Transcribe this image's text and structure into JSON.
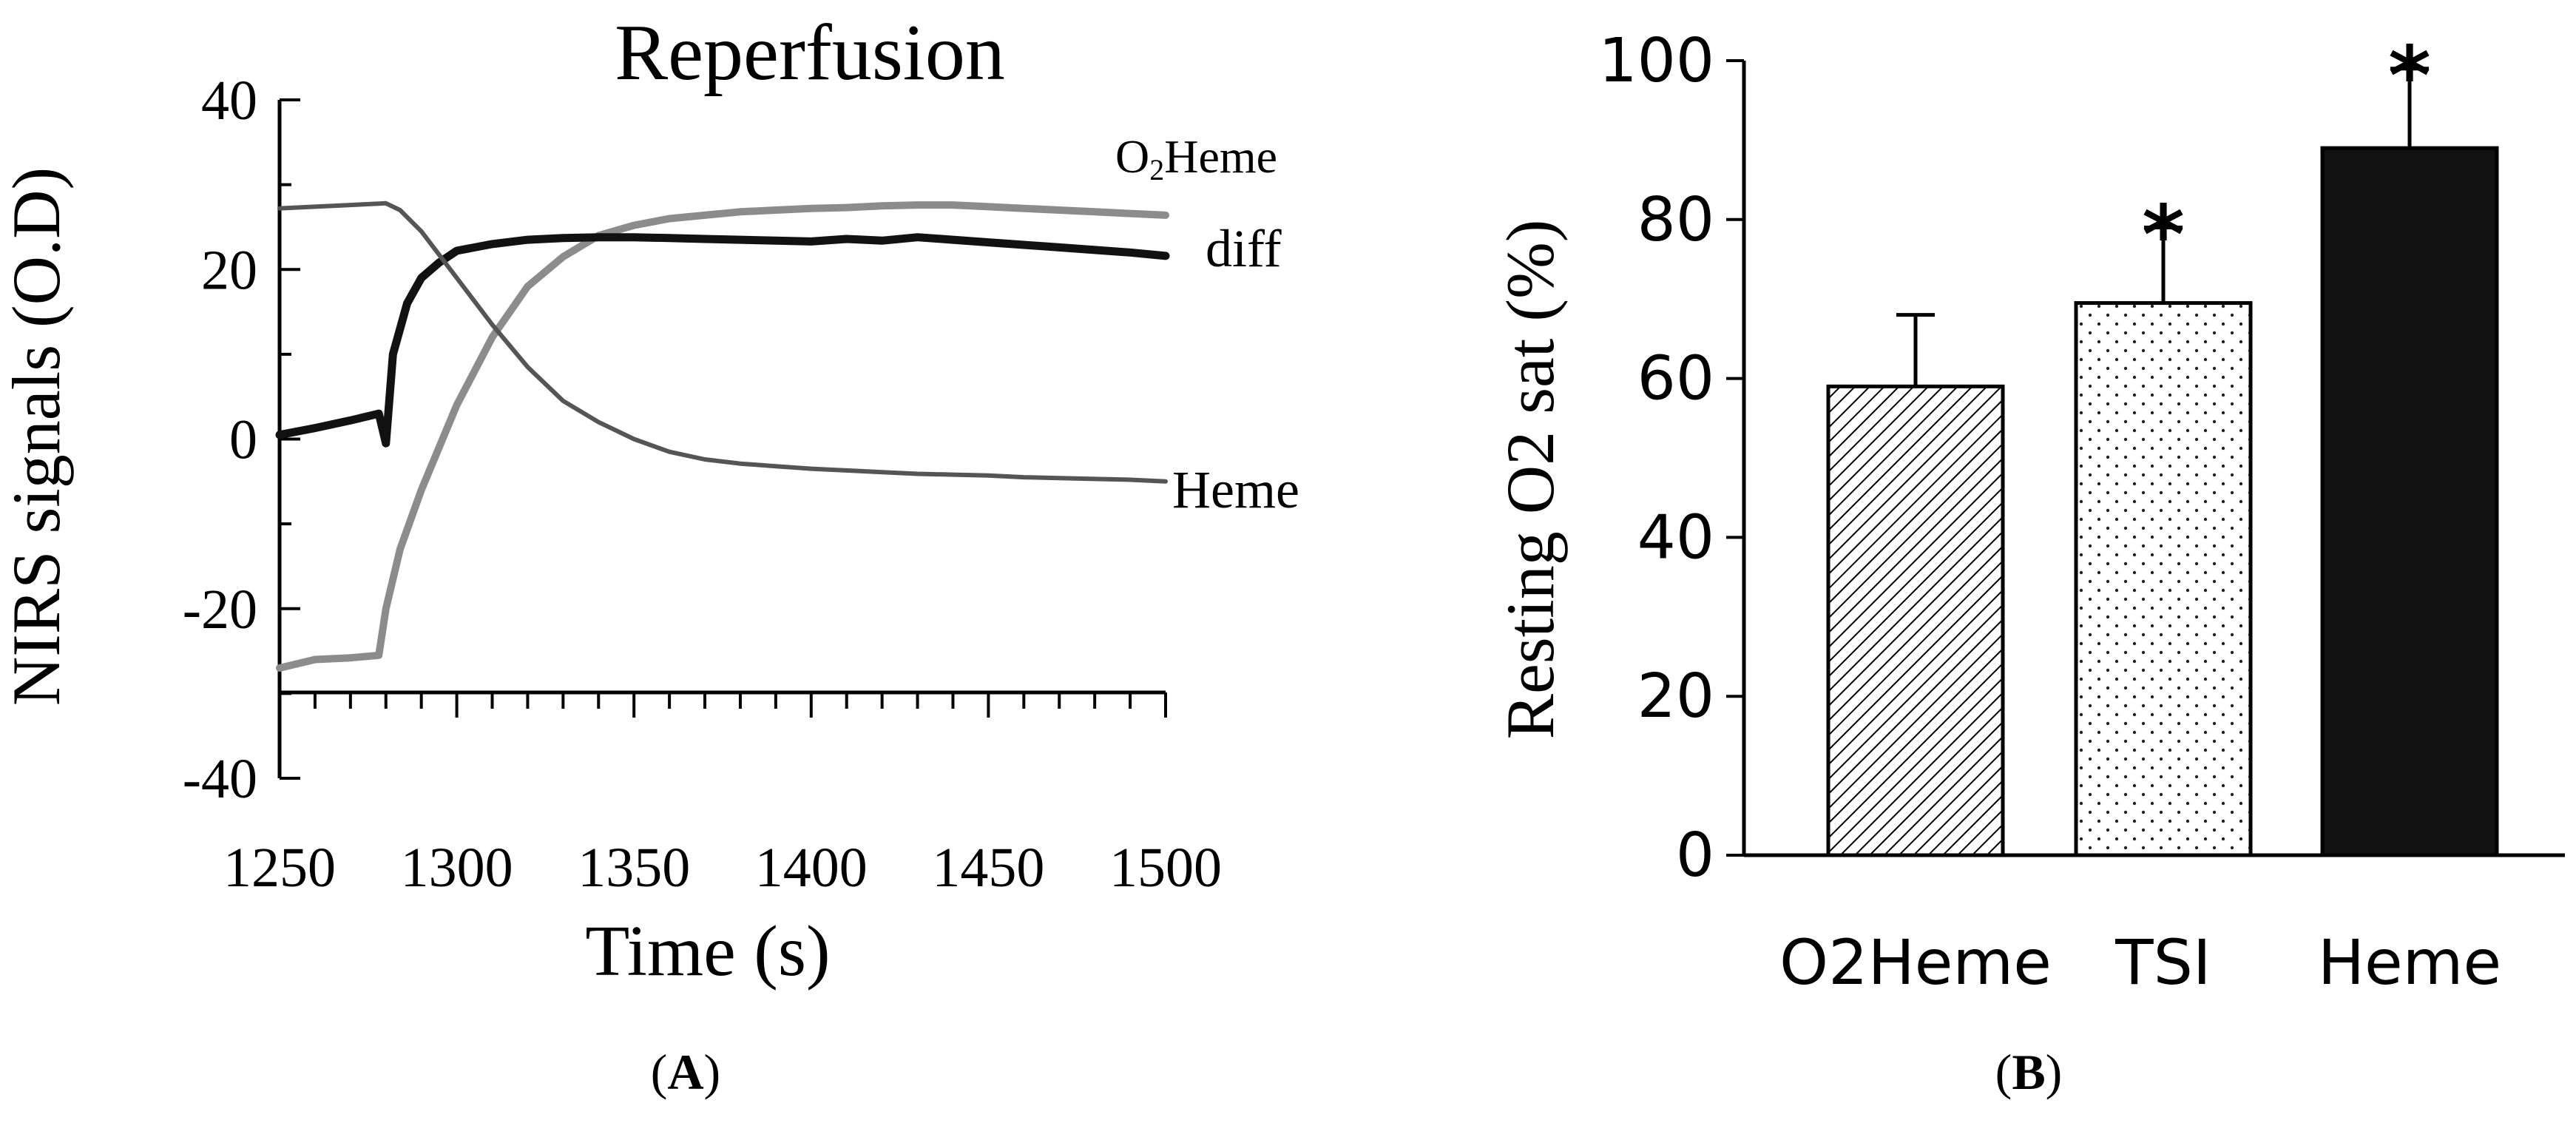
{
  "figure": {
    "panel_a_label": {
      "open": "(",
      "letter": "A",
      "close": ")"
    },
    "panel_b_label": {
      "open": "(",
      "letter": "B",
      "close": ")"
    }
  },
  "chart_data": [
    {
      "type": "line",
      "title": "Reperfusion",
      "xlabel": "Time (s)",
      "ylabel": "NIRS signals (O.D)",
      "xlim": [
        1250,
        1500
      ],
      "ylim": [
        -40,
        40
      ],
      "x_ticks": [
        "1250",
        "1300",
        "1350",
        "1400",
        "1450",
        "1500"
      ],
      "y_ticks": [
        "40",
        "20",
        "0",
        "-20",
        "-40"
      ],
      "grid": false,
      "legend": "inline labels at right end of lines",
      "series_labels": {
        "O2Heme": {
          "main": "O",
          "sub": "2",
          "rest": "Heme"
        },
        "diff": "diff",
        "Heme": "Heme"
      },
      "series": [
        {
          "name": "O2Heme",
          "color": "#8c8c8c",
          "points": [
            [
              1250,
              -27
            ],
            [
              1260,
              -26
            ],
            [
              1270,
              -25.8
            ],
            [
              1278,
              -25.5
            ],
            [
              1280,
              -20
            ],
            [
              1284,
              -13
            ],
            [
              1290,
              -6
            ],
            [
              1300,
              4
            ],
            [
              1310,
              12
            ],
            [
              1320,
              18
            ],
            [
              1330,
              21.5
            ],
            [
              1340,
              24
            ],
            [
              1350,
              25.2
            ],
            [
              1360,
              26
            ],
            [
              1370,
              26.4
            ],
            [
              1380,
              26.8
            ],
            [
              1390,
              27
            ],
            [
              1400,
              27.2
            ],
            [
              1410,
              27.3
            ],
            [
              1420,
              27.5
            ],
            [
              1430,
              27.6
            ],
            [
              1440,
              27.6
            ],
            [
              1450,
              27.4
            ],
            [
              1460,
              27.2
            ],
            [
              1470,
              27
            ],
            [
              1480,
              26.8
            ],
            [
              1490,
              26.6
            ],
            [
              1500,
              26.4
            ]
          ]
        },
        {
          "name": "diff",
          "color": "#111111",
          "points": [
            [
              1250,
              0.5
            ],
            [
              1260,
              1.3
            ],
            [
              1270,
              2.2
            ],
            [
              1278,
              3
            ],
            [
              1280,
              -0.5
            ],
            [
              1282,
              10
            ],
            [
              1286,
              16
            ],
            [
              1290,
              19
            ],
            [
              1295,
              20.8
            ],
            [
              1300,
              22.2
            ],
            [
              1310,
              23
            ],
            [
              1320,
              23.5
            ],
            [
              1330,
              23.7
            ],
            [
              1340,
              23.8
            ],
            [
              1350,
              23.8
            ],
            [
              1360,
              23.7
            ],
            [
              1370,
              23.6
            ],
            [
              1380,
              23.5
            ],
            [
              1390,
              23.4
            ],
            [
              1400,
              23.3
            ],
            [
              1410,
              23.6
            ],
            [
              1420,
              23.4
            ],
            [
              1430,
              23.8
            ],
            [
              1440,
              23.5
            ],
            [
              1450,
              23.2
            ],
            [
              1460,
              22.9
            ],
            [
              1470,
              22.6
            ],
            [
              1480,
              22.3
            ],
            [
              1490,
              22
            ],
            [
              1500,
              21.6
            ]
          ]
        },
        {
          "name": "Heme",
          "color": "#555555",
          "points": [
            [
              1250,
              27.2
            ],
            [
              1260,
              27.4
            ],
            [
              1270,
              27.6
            ],
            [
              1280,
              27.8
            ],
            [
              1284,
              27
            ],
            [
              1290,
              24.5
            ],
            [
              1300,
              19
            ],
            [
              1310,
              13.5
            ],
            [
              1320,
              8.5
            ],
            [
              1330,
              4.5
            ],
            [
              1340,
              2
            ],
            [
              1350,
              0
            ],
            [
              1360,
              -1.5
            ],
            [
              1370,
              -2.4
            ],
            [
              1380,
              -2.9
            ],
            [
              1390,
              -3.2
            ],
            [
              1400,
              -3.5
            ],
            [
              1410,
              -3.7
            ],
            [
              1420,
              -3.9
            ],
            [
              1430,
              -4.1
            ],
            [
              1440,
              -4.2
            ],
            [
              1450,
              -4.3
            ],
            [
              1460,
              -4.5
            ],
            [
              1470,
              -4.6
            ],
            [
              1480,
              -4.7
            ],
            [
              1490,
              -4.8
            ],
            [
              1500,
              -5
            ]
          ]
        }
      ]
    },
    {
      "type": "bar",
      "title": "",
      "xlabel": "",
      "ylabel": "Resting O2 sat (%)",
      "ylim": [
        0,
        100
      ],
      "y_ticks": [
        "0",
        "20",
        "40",
        "60",
        "80",
        "100"
      ],
      "grid": false,
      "categories": [
        "O2Heme",
        "TSI",
        "Heme"
      ],
      "values": [
        59,
        69.5,
        89
      ],
      "error_upper": [
        9,
        9.5,
        10
      ],
      "significance": [
        "",
        "*",
        "*"
      ],
      "fills": [
        "diagonal-hatch",
        "dots",
        "solid-black"
      ]
    }
  ]
}
